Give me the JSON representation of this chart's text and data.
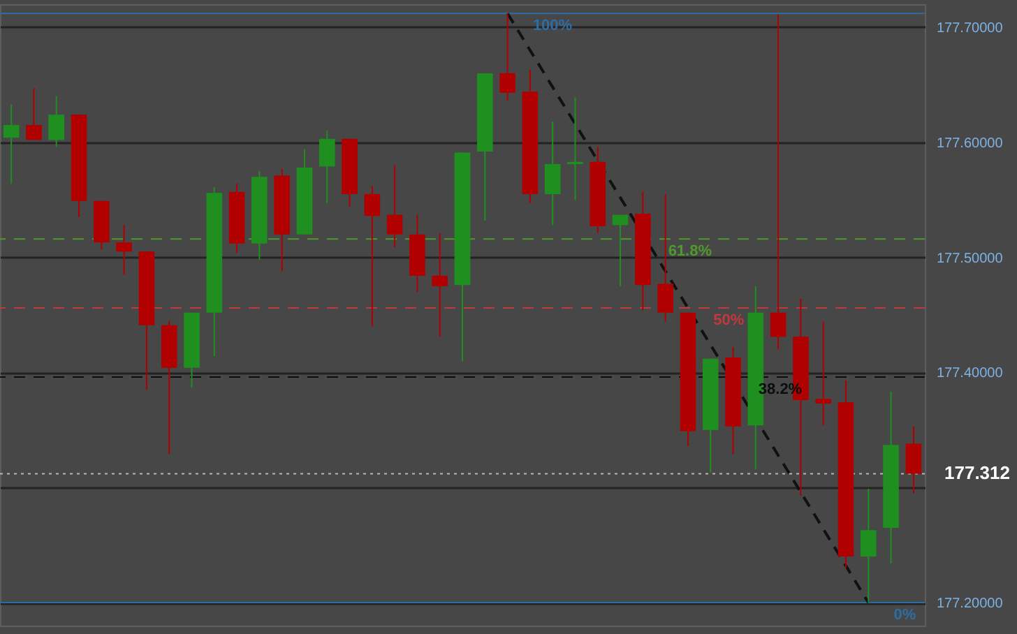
{
  "chart_data": {
    "type": "candlestick",
    "categories": [
      null,
      null,
      null,
      null,
      null,
      null,
      null,
      null,
      null,
      null,
      null,
      null,
      null,
      null,
      null,
      null,
      null,
      null,
      null,
      null,
      null,
      null,
      null,
      null,
      null,
      null,
      null,
      null,
      null,
      null,
      null,
      null,
      null,
      null,
      null,
      null,
      null,
      null,
      null,
      null,
      null
    ],
    "ohlc": [
      [
        177.604,
        177.633,
        177.564,
        177.615
      ],
      [
        177.615,
        177.647,
        177.602,
        177.602
      ],
      [
        177.602,
        177.64,
        177.596,
        177.624
      ],
      [
        177.624,
        177.624,
        177.535,
        177.549
      ],
      [
        177.549,
        177.549,
        177.507,
        177.513
      ],
      [
        177.513,
        177.528,
        177.485,
        177.505
      ],
      [
        177.505,
        177.505,
        177.385,
        177.441
      ],
      [
        177.441,
        177.445,
        177.329,
        177.404
      ],
      [
        177.404,
        177.452,
        177.387,
        177.452
      ],
      [
        177.452,
        177.561,
        177.414,
        177.556
      ],
      [
        177.557,
        177.564,
        177.504,
        177.512
      ],
      [
        177.512,
        177.575,
        177.498,
        177.57
      ],
      [
        177.571,
        177.577,
        177.488,
        177.52
      ],
      [
        177.52,
        177.594,
        177.52,
        177.578
      ],
      [
        177.579,
        177.61,
        177.547,
        177.603
      ],
      [
        177.603,
        177.603,
        177.544,
        177.555
      ],
      [
        177.555,
        177.562,
        177.44,
        177.536
      ],
      [
        177.537,
        177.58,
        177.509,
        177.52
      ],
      [
        177.52,
        177.537,
        177.47,
        177.484
      ],
      [
        177.484,
        177.521,
        177.431,
        177.475
      ],
      [
        177.476,
        177.591,
        177.41,
        177.591
      ],
      [
        177.592,
        177.66,
        177.532,
        177.66
      ],
      [
        177.66,
        177.712,
        177.636,
        177.643
      ],
      [
        177.644,
        177.663,
        177.547,
        177.555
      ],
      [
        177.555,
        177.618,
        177.528,
        177.581
      ],
      [
        177.581,
        177.639,
        177.55,
        177.583
      ],
      [
        177.583,
        177.596,
        177.521,
        177.527
      ],
      [
        177.528,
        177.537,
        177.475,
        177.537
      ],
      [
        177.538,
        177.557,
        177.454,
        177.476
      ],
      [
        177.477,
        177.555,
        177.444,
        177.452
      ],
      [
        177.452,
        177.452,
        177.336,
        177.349
      ],
      [
        177.35,
        177.412,
        177.313,
        177.412
      ],
      [
        177.413,
        177.422,
        177.329,
        177.353
      ],
      [
        177.354,
        177.475,
        177.316,
        177.452
      ],
      [
        177.452,
        177.711,
        177.42,
        177.431
      ],
      [
        177.431,
        177.464,
        177.293,
        177.376
      ],
      [
        177.377,
        177.444,
        177.354,
        177.373
      ],
      [
        177.374,
        177.393,
        177.23,
        177.24
      ],
      [
        177.24,
        177.299,
        177.2,
        177.263
      ],
      [
        177.265,
        177.383,
        177.234,
        177.337
      ],
      [
        177.338,
        177.353,
        177.295,
        177.312
      ]
    ],
    "series": [
      {
        "type": "line",
        "color": "#111111",
        "line_style": "dashed",
        "values": [
          null,
          null,
          null,
          null,
          null,
          null,
          null,
          null,
          null,
          null,
          null,
          null,
          null,
          null,
          null,
          null,
          null,
          null,
          null,
          null,
          null,
          null,
          177.712,
          null,
          null,
          null,
          null,
          null,
          null,
          null,
          null,
          null,
          null,
          null,
          null,
          null,
          null,
          null,
          177.2,
          null,
          null
        ]
      }
    ],
    "ylim": [
      177.18,
      177.72
    ],
    "yticks": [
      {
        "value": 177.2,
        "label": "177.20000"
      },
      {
        "value": 177.3,
        "label": null
      },
      {
        "value": 177.4,
        "label": "177.40000"
      },
      {
        "value": 177.5,
        "label": "177.50000"
      },
      {
        "value": 177.6,
        "label": "177.60000"
      },
      {
        "value": 177.7,
        "label": "177.70000"
      }
    ],
    "tick_labels": "y",
    "grid": "y",
    "ref_lines": [
      {
        "axis": "y",
        "value": 177.712,
        "color": "#2e6da4",
        "line_style": "solid"
      },
      {
        "axis": "y",
        "value": 177.516,
        "color": "#4f9a2c",
        "line_style": "dashed"
      },
      {
        "axis": "y",
        "value": 177.456,
        "color": "#c0393b",
        "line_style": "dashed"
      },
      {
        "axis": "y",
        "value": 177.396,
        "color": "#0d0d0d",
        "line_style": "dashed"
      },
      {
        "axis": "y",
        "value": 177.2,
        "color": "#2e6da4",
        "line_style": "solid"
      },
      {
        "axis": "y",
        "value": 177.312,
        "label": "177.312",
        "color": "#b8b8b8",
        "line_style": "dotted"
      }
    ],
    "annotations": [
      {
        "text": "100%",
        "y": 177.712
      },
      {
        "text": "61.8%",
        "y": 177.516
      },
      {
        "text": "50%",
        "y": 177.456
      },
      {
        "text": "38.2%",
        "y": 177.396
      },
      {
        "text": "0%",
        "y": 177.2
      }
    ]
  }
}
